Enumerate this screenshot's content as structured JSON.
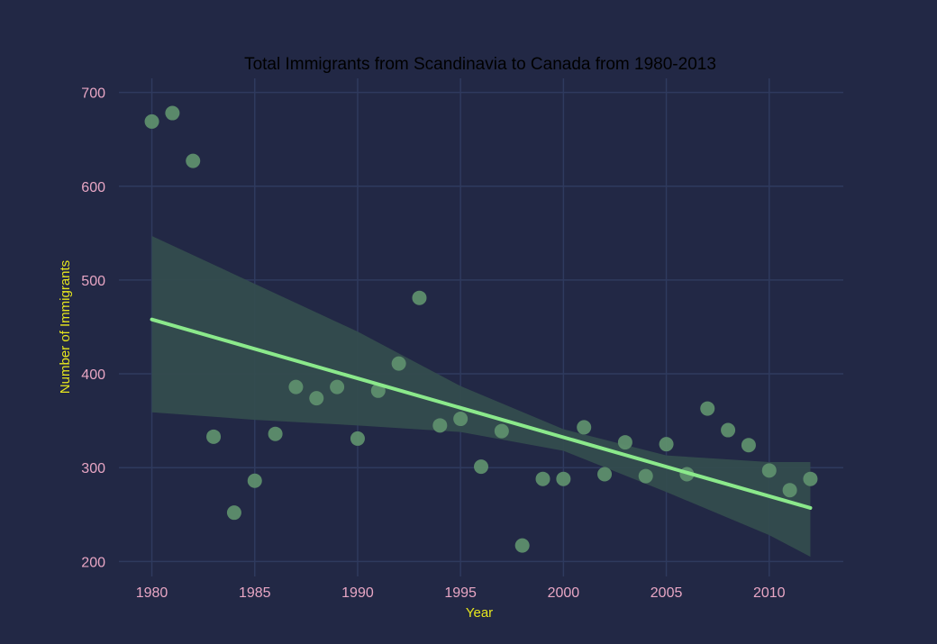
{
  "chart_data": {
    "type": "scatter",
    "title": "Total Immigrants from Scandinavia to Canada from 1980-2013",
    "xlabel": "Year",
    "ylabel": "Number of Immigrants",
    "xlim": [
      1978.4,
      2013.6
    ],
    "ylim": [
      184,
      715
    ],
    "x_ticks": [
      1980,
      1985,
      1990,
      1995,
      2000,
      2005,
      2010
    ],
    "y_ticks": [
      200,
      300,
      400,
      500,
      600,
      700
    ],
    "grid": true,
    "series": [
      {
        "type": "scatter",
        "x": [
          1980,
          1981,
          1982,
          1983,
          1984,
          1985,
          1986,
          1987,
          1988,
          1989,
          1990,
          1991,
          1992,
          1993,
          1994,
          1995,
          1996,
          1997,
          1998,
          1999,
          2000,
          2001,
          2002,
          2003,
          2004,
          2005,
          2006,
          2007,
          2008,
          2009,
          2010,
          2011,
          2012
        ],
        "y": [
          669,
          678,
          627,
          333,
          252,
          286,
          336,
          386,
          374,
          386,
          331,
          382,
          411,
          481,
          345,
          352,
          301,
          339,
          217,
          288,
          288,
          343,
          293,
          327,
          291,
          325,
          293,
          363,
          340,
          324,
          297,
          276,
          288
        ]
      },
      {
        "type": "line",
        "name": "Regression fit",
        "x": [
          1980,
          2012
        ],
        "y": [
          458,
          257
        ]
      },
      {
        "type": "area",
        "name": "Confidence band",
        "x": [
          1980,
          1985,
          1990,
          1995,
          2000,
          2005,
          2010,
          2012
        ],
        "upper": [
          547,
          496,
          445,
          387,
          341,
          313,
          306,
          306
        ],
        "lower": [
          359,
          351,
          345,
          338,
          318,
          274,
          228,
          205
        ]
      }
    ],
    "colors": {
      "background": "#222845",
      "grid": "#2f3a5e",
      "points": "#5e8e6d",
      "line": "#8be98b",
      "band": "#344e4e",
      "title": "#000000",
      "tick_labels": "#e8a6c4",
      "axis_labels": "#e6e61e"
    }
  }
}
